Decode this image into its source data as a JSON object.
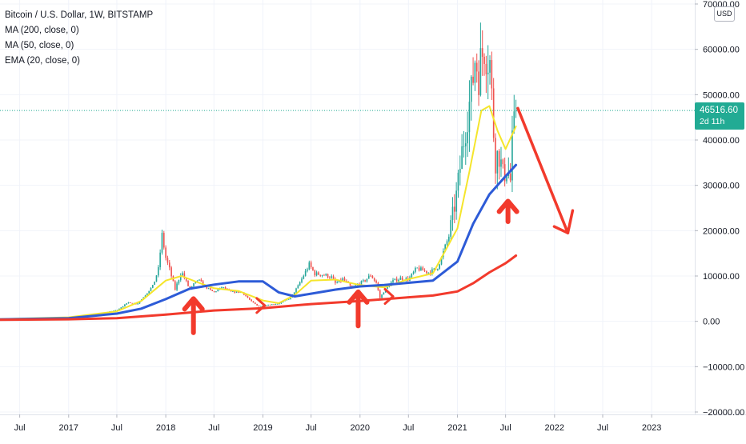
{
  "legend": {
    "title": "Bitcoin / U.S. Dollar, 1W, BITSTAMP",
    "ma200": "MA (200, close, 0)",
    "ma50": "MA (50, close, 0)",
    "ema20": "EMA (20, close, 0)"
  },
  "currency": "USD",
  "last_price": {
    "value": "46516.60",
    "countdown": "2d 11h"
  },
  "colors": {
    "up": "#26a69a",
    "down": "#ef5350",
    "ma200": "#f23a2c",
    "ma50": "#2d5bd7",
    "ema20": "#f5e52c",
    "arrow": "#f23a2c",
    "grid": "#f0f3fa",
    "axis_text": "#131722",
    "price_line": "#22ab94"
  },
  "chart_data": {
    "type": "candlestick",
    "title": "Bitcoin / U.S. Dollar, 1W, BITSTAMP",
    "ylim": [
      -20000,
      70000
    ],
    "xlim": [
      "2016-04-18",
      "2023-06-12"
    ],
    "yticks": [
      70000,
      60000,
      50000,
      40000,
      30000,
      20000,
      10000,
      0,
      -10000,
      -20000
    ],
    "ytick_labels": [
      "70000.00",
      "60000.00",
      "50000.00",
      "40000.00",
      "30000.00",
      "20000.00",
      "10000.00",
      "0.00",
      "−10000.00",
      "−20000.00"
    ],
    "xticks": [
      {
        "label": "Jul",
        "date": "2016-07-01"
      },
      {
        "label": "2017",
        "date": "2017-01-01"
      },
      {
        "label": "Jul",
        "date": "2017-07-01"
      },
      {
        "label": "2018",
        "date": "2018-01-01"
      },
      {
        "label": "Jul",
        "date": "2018-07-01"
      },
      {
        "label": "2019",
        "date": "2019-01-01"
      },
      {
        "label": "Jul",
        "date": "2019-07-01"
      },
      {
        "label": "2020",
        "date": "2020-01-01"
      },
      {
        "label": "Jul",
        "date": "2020-07-01"
      },
      {
        "label": "2021",
        "date": "2021-01-01"
      },
      {
        "label": "Jul",
        "date": "2021-07-01"
      },
      {
        "label": "2022",
        "date": "2022-01-01"
      },
      {
        "label": "Jul",
        "date": "2022-07-01"
      },
      {
        "label": "2023",
        "date": "2023-01-01"
      }
    ],
    "last_price": 46516.6,
    "price_anchors": [
      [
        "2016-04-18",
        450
      ],
      [
        "2016-07-01",
        650
      ],
      [
        "2016-10-01",
        620
      ],
      [
        "2017-01-01",
        990
      ],
      [
        "2017-03-15",
        1200
      ],
      [
        "2017-05-15",
        1900
      ],
      [
        "2017-07-01",
        2500
      ],
      [
        "2017-08-15",
        4200
      ],
      [
        "2017-09-15",
        3800
      ],
      [
        "2017-10-15",
        5700
      ],
      [
        "2017-11-15",
        8000
      ],
      [
        "2017-12-04",
        11500
      ],
      [
        "2017-12-18",
        19000
      ],
      [
        "2018-01-01",
        14000
      ],
      [
        "2018-01-15",
        11500
      ],
      [
        "2018-02-05",
        7000
      ],
      [
        "2018-03-01",
        11000
      ],
      [
        "2018-04-01",
        7000
      ],
      [
        "2018-05-01",
        9200
      ],
      [
        "2018-06-01",
        7500
      ],
      [
        "2018-07-01",
        6400
      ],
      [
        "2018-08-01",
        7600
      ],
      [
        "2018-09-01",
        6500
      ],
      [
        "2018-10-15",
        6400
      ],
      [
        "2018-11-20",
        4300
      ],
      [
        "2018-12-15",
        3300
      ],
      [
        "2019-01-15",
        3600
      ],
      [
        "2019-03-01",
        3900
      ],
      [
        "2019-04-15",
        5200
      ],
      [
        "2019-05-15",
        8000
      ],
      [
        "2019-06-24",
        12500
      ],
      [
        "2019-07-15",
        10500
      ],
      [
        "2019-08-15",
        10300
      ],
      [
        "2019-09-15",
        9800
      ],
      [
        "2019-10-01",
        8300
      ],
      [
        "2019-10-28",
        9300
      ],
      [
        "2019-12-01",
        7400
      ],
      [
        "2020-01-15",
        8800
      ],
      [
        "2020-02-10",
        10200
      ],
      [
        "2020-03-02",
        8500
      ],
      [
        "2020-03-16",
        5200
      ],
      [
        "2020-04-01",
        6700
      ],
      [
        "2020-05-01",
        8800
      ],
      [
        "2020-06-01",
        9500
      ],
      [
        "2020-07-01",
        9200
      ],
      [
        "2020-08-01",
        11700
      ],
      [
        "2020-09-15",
        10800
      ],
      [
        "2020-10-15",
        11500
      ],
      [
        "2020-11-01",
        13800
      ],
      [
        "2020-12-01",
        19000
      ],
      [
        "2021-01-01",
        29000
      ],
      [
        "2021-01-15",
        36000
      ],
      [
        "2021-02-08",
        46000
      ],
      [
        "2021-02-22",
        50000
      ],
      [
        "2021-03-08",
        58000
      ],
      [
        "2021-03-22",
        55000
      ],
      [
        "2021-04-12",
        61000
      ],
      [
        "2021-05-03",
        57000
      ],
      [
        "2021-05-17",
        42000
      ],
      [
        "2021-05-24",
        36000
      ],
      [
        "2021-06-07",
        37000
      ],
      [
        "2021-06-21",
        32000
      ],
      [
        "2021-07-05",
        34000
      ],
      [
        "2021-07-19",
        31000
      ],
      [
        "2021-07-26",
        39000
      ],
      [
        "2021-08-09",
        46500
      ]
    ],
    "series": [
      {
        "name": "MA (200, close, 0)",
        "values": [
          [
            "2016-04-18",
            350
          ],
          [
            "2017-01-01",
            450
          ],
          [
            "2017-07-01",
            700
          ],
          [
            "2018-01-01",
            1500
          ],
          [
            "2018-07-01",
            2400
          ],
          [
            "2019-01-01",
            2900
          ],
          [
            "2019-07-01",
            3800
          ],
          [
            "2020-01-01",
            4500
          ],
          [
            "2020-07-01",
            5300
          ],
          [
            "2020-10-01",
            5700
          ],
          [
            "2021-01-01",
            6600
          ],
          [
            "2021-03-01",
            8400
          ],
          [
            "2021-05-01",
            10800
          ],
          [
            "2021-07-01",
            12800
          ],
          [
            "2021-08-09",
            14500
          ]
        ]
      },
      {
        "name": "MA (50, close, 0)",
        "values": [
          [
            "2016-04-18",
            420
          ],
          [
            "2017-01-01",
            700
          ],
          [
            "2017-07-01",
            1700
          ],
          [
            "2017-10-01",
            2800
          ],
          [
            "2018-01-01",
            4900
          ],
          [
            "2018-04-01",
            7200
          ],
          [
            "2018-07-01",
            8100
          ],
          [
            "2018-10-01",
            8800
          ],
          [
            "2019-01-01",
            8800
          ],
          [
            "2019-03-01",
            6400
          ],
          [
            "2019-05-01",
            5500
          ],
          [
            "2019-07-01",
            6100
          ],
          [
            "2019-10-01",
            7000
          ],
          [
            "2020-01-01",
            7700
          ],
          [
            "2020-04-01",
            8000
          ],
          [
            "2020-07-01",
            8500
          ],
          [
            "2020-10-01",
            9000
          ],
          [
            "2021-01-01",
            13200
          ],
          [
            "2021-03-01",
            21500
          ],
          [
            "2021-05-01",
            28000
          ],
          [
            "2021-07-01",
            32000
          ],
          [
            "2021-08-09",
            34500
          ]
        ]
      },
      {
        "name": "EMA (20, close, 0)",
        "values": [
          [
            "2016-04-18",
            500
          ],
          [
            "2017-01-01",
            900
          ],
          [
            "2017-07-01",
            2200
          ],
          [
            "2017-10-01",
            4500
          ],
          [
            "2018-01-01",
            9000
          ],
          [
            "2018-03-01",
            10000
          ],
          [
            "2018-05-01",
            8600
          ],
          [
            "2018-07-01",
            7300
          ],
          [
            "2018-10-01",
            6700
          ],
          [
            "2019-01-01",
            4600
          ],
          [
            "2019-03-01",
            4000
          ],
          [
            "2019-05-01",
            5800
          ],
          [
            "2019-07-01",
            9000
          ],
          [
            "2019-10-01",
            9200
          ],
          [
            "2020-01-01",
            8000
          ],
          [
            "2020-04-01",
            7500
          ],
          [
            "2020-07-01",
            9300
          ],
          [
            "2020-10-01",
            10600
          ],
          [
            "2021-01-01",
            20500
          ],
          [
            "2021-02-15",
            33000
          ],
          [
            "2021-04-01",
            46500
          ],
          [
            "2021-05-01",
            47500
          ],
          [
            "2021-06-01",
            42000
          ],
          [
            "2021-07-01",
            38000
          ],
          [
            "2021-08-09",
            43000
          ]
        ]
      }
    ],
    "annotations": [
      {
        "type": "arrow-up",
        "date": "2018-04-15",
        "tip": 5000,
        "tail": -2500
      },
      {
        "type": "arrow-up",
        "date": "2019-12-25",
        "tip": 6500,
        "tail": -1000
      },
      {
        "type": "arrow-up",
        "date": "2021-07-10",
        "tip": 26500,
        "tail": 22000
      },
      {
        "type": "chevron-right",
        "date": "2019-01-05",
        "value": 3500
      },
      {
        "type": "chevron-right",
        "date": "2020-05-01",
        "value": 5500
      },
      {
        "type": "arrow-down",
        "from": [
          "2021-08-16",
          47000
        ],
        "to": [
          "2022-02-20",
          19500
        ]
      }
    ]
  }
}
